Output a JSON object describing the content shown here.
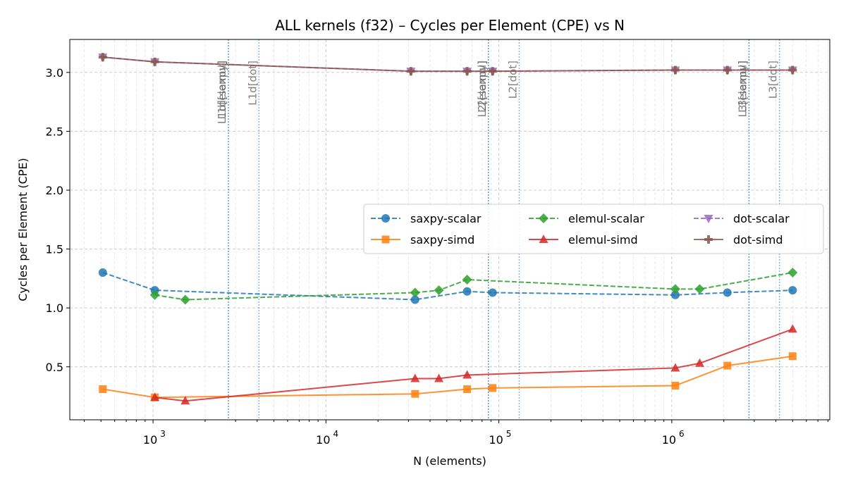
{
  "chart_data": {
    "type": "line",
    "title": "ALL kernels (f32) – Cycles per Element (CPE) vs N",
    "xlabel": "N (elements)",
    "ylabel": "Cycles per Element (CPE)",
    "xscale": "log",
    "xlim": [
      330,
      8200000
    ],
    "ylim": [
      0.05,
      3.28
    ],
    "yticks": [
      0.5,
      1.0,
      1.5,
      2.0,
      2.5,
      3.0
    ],
    "ytick_labels": [
      "0.5",
      "1.0",
      "1.5",
      "2.0",
      "2.5",
      "3.0"
    ],
    "xticks": [
      1000,
      10000,
      100000,
      1000000
    ],
    "xtick_bases": [
      "10",
      "10",
      "10",
      "10"
    ],
    "xtick_exponents": [
      "3",
      "4",
      "5",
      "6"
    ],
    "grid": true,
    "legend_position": "center-right",
    "series": [
      {
        "name": "saxpy-scalar",
        "color": "#1f77b4",
        "linestyle": "dashed",
        "marker": "circle",
        "x": [
          512,
          1024,
          32768,
          65536,
          92000,
          1048576,
          2097152,
          5000000
        ],
        "y": [
          1.3,
          1.15,
          1.07,
          1.14,
          1.13,
          1.11,
          1.13,
          1.15
        ]
      },
      {
        "name": "saxpy-simd",
        "color": "#ff7f0e",
        "linestyle": "solid",
        "marker": "square",
        "x": [
          512,
          1024,
          32768,
          65536,
          92000,
          1048576,
          2097152,
          5000000
        ],
        "y": [
          0.31,
          0.24,
          0.27,
          0.31,
          0.32,
          0.34,
          0.51,
          0.59
        ]
      },
      {
        "name": "elemul-scalar",
        "color": "#2ca02c",
        "linestyle": "dashed",
        "marker": "diamond",
        "x": [
          1024,
          1536,
          32768,
          45000,
          65536,
          1048576,
          1450000,
          5000000
        ],
        "y": [
          1.11,
          1.07,
          1.13,
          1.15,
          1.24,
          1.16,
          1.16,
          1.3
        ]
      },
      {
        "name": "elemul-simd",
        "color": "#d62728",
        "linestyle": "solid",
        "marker": "triangle-up",
        "x": [
          1024,
          1536,
          32768,
          45000,
          65536,
          1048576,
          1450000,
          5000000
        ],
        "y": [
          0.24,
          0.21,
          0.4,
          0.4,
          0.43,
          0.49,
          0.53,
          0.82
        ]
      },
      {
        "name": "dot-scalar",
        "color": "#9467bd",
        "linestyle": "dashed",
        "marker": "triangle-down",
        "x": [
          512,
          1024,
          31000,
          65536,
          92000,
          1048576,
          2097152,
          5000000
        ],
        "y": [
          3.13,
          3.09,
          3.01,
          3.01,
          3.01,
          3.02,
          3.02,
          3.02
        ]
      },
      {
        "name": "dot-simd",
        "color": "#8c564b",
        "linestyle": "solid",
        "marker": "plus",
        "x": [
          512,
          1024,
          31000,
          65536,
          92000,
          1048576,
          2097152,
          5000000
        ],
        "y": [
          3.13,
          3.09,
          3.01,
          3.01,
          3.01,
          3.02,
          3.02,
          3.02
        ]
      }
    ],
    "vlines": [
      {
        "label": "L1d[saxpy]",
        "x": 2730,
        "color": "#1f77b4"
      },
      {
        "label": "L1d[elemul]",
        "x": 2730,
        "color": "#1f77b4"
      },
      {
        "label": "L1d[dot]",
        "x": 4096,
        "color": "#1f77b4"
      },
      {
        "label": "L2[saxpy]",
        "x": 87000,
        "color": "#1f77b4"
      },
      {
        "label": "L2[elemul]",
        "x": 87000,
        "color": "#1f77b4"
      },
      {
        "label": "L2[dot]",
        "x": 131072,
        "color": "#1f77b4"
      },
      {
        "label": "L3[saxpy]",
        "x": 2796000,
        "color": "#1f77b4"
      },
      {
        "label": "L3[elemul]",
        "x": 2796000,
        "color": "#1f77b4"
      },
      {
        "label": "L3[dot]",
        "x": 4194304,
        "color": "#1f77b4"
      }
    ]
  }
}
